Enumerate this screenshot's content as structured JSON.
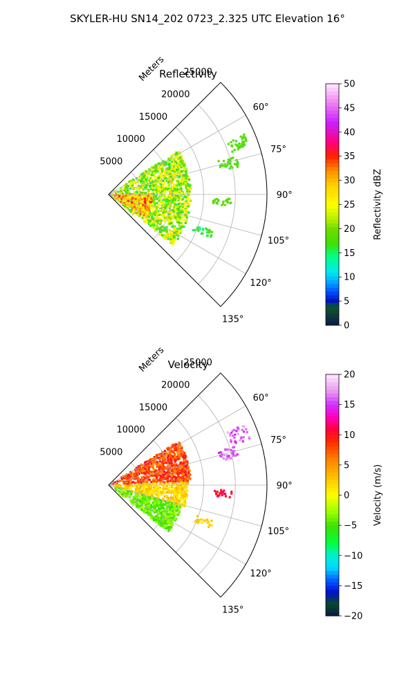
{
  "figure": {
    "title": "SKYLER-HU  SN14_202  0723_2.325 UTC Elevation 16°"
  },
  "chart_data": [
    {
      "type": "heatmap",
      "title": "Reflectivity",
      "projection": "polar-sector",
      "radial_label": "Meters",
      "radial_ticks": [
        5000,
        10000,
        15000,
        20000,
        25000
      ],
      "radial_tick_labels": [
        "5000",
        "10000",
        "15000",
        "20000",
        "25000"
      ],
      "rlim": [
        0,
        25000
      ],
      "azimuth_range_deg": [
        45,
        135
      ],
      "angular_ticks_deg": [
        60,
        75,
        90,
        105,
        120,
        135
      ],
      "angular_tick_labels": [
        "60°",
        "75°",
        "90°",
        "105°",
        "120°",
        "135°"
      ],
      "grid": true,
      "colorbar": {
        "label": "Reflectivity dBZ",
        "min": 0,
        "max": 50,
        "ticks": [
          0,
          5,
          10,
          15,
          20,
          25,
          30,
          35,
          40,
          45,
          50
        ],
        "tick_labels": [
          "0",
          "5",
          "10",
          "15",
          "20",
          "25",
          "30",
          "35",
          "40",
          "45",
          "50"
        ],
        "placement": "right"
      },
      "echo_regions": [
        {
          "az_deg": [
            58,
            128
          ],
          "range_m": [
            0,
            13000
          ],
          "value_range": [
            15,
            28
          ]
        },
        {
          "az_deg": [
            90,
            122
          ],
          "range_m": [
            0,
            7000
          ],
          "value_range": [
            22,
            36
          ]
        },
        {
          "az_deg": [
            66,
            72
          ],
          "range_m": [
            20500,
            23500
          ],
          "value_range": [
            16,
            20
          ]
        },
        {
          "az_deg": [
            73,
            78
          ],
          "range_m": [
            18000,
            21000
          ],
          "value_range": [
            16,
            20
          ]
        },
        {
          "az_deg": [
            92,
            96
          ],
          "range_m": [
            16500,
            19500
          ],
          "value_range": [
            16,
            20
          ]
        },
        {
          "az_deg": [
            109,
            113
          ],
          "range_m": [
            14500,
            17500
          ],
          "value_range": [
            14,
            18
          ]
        }
      ]
    },
    {
      "type": "heatmap",
      "title": "Velocity",
      "projection": "polar-sector",
      "radial_label": "Meters",
      "radial_ticks": [
        5000,
        10000,
        15000,
        20000,
        25000
      ],
      "radial_tick_labels": [
        "5000",
        "10000",
        "15000",
        "20000",
        "25000"
      ],
      "rlim": [
        0,
        25000
      ],
      "azimuth_range_deg": [
        45,
        135
      ],
      "angular_ticks_deg": [
        60,
        75,
        90,
        105,
        120,
        135
      ],
      "angular_tick_labels": [
        "60°",
        "75°",
        "90°",
        "105°",
        "120°",
        "135°"
      ],
      "grid": true,
      "colorbar": {
        "label": "Velocity (m/s)",
        "min": -20,
        "max": 20,
        "ticks": [
          -20,
          -15,
          -10,
          -5,
          0,
          5,
          10,
          15,
          20
        ],
        "tick_labels": [
          "−20",
          "−15",
          "−10",
          "−5",
          "0",
          "5",
          "10",
          "15",
          "20"
        ],
        "placement": "right"
      },
      "echo_regions": [
        {
          "az_deg": [
            58,
            88
          ],
          "range_m": [
            0,
            13000
          ],
          "value_range": [
            5,
            11
          ]
        },
        {
          "az_deg": [
            88,
            106
          ],
          "range_m": [
            0,
            12500
          ],
          "value_range": [
            0,
            4
          ]
        },
        {
          "az_deg": [
            106,
            128
          ],
          "range_m": [
            0,
            12000
          ],
          "value_range": [
            -6,
            -2
          ]
        },
        {
          "az_deg": [
            66,
            72
          ],
          "range_m": [
            20500,
            23500
          ],
          "value_range": [
            14,
            18
          ]
        },
        {
          "az_deg": [
            73,
            78
          ],
          "range_m": [
            18000,
            21000
          ],
          "value_range": [
            14,
            17
          ]
        },
        {
          "az_deg": [
            92,
            96
          ],
          "range_m": [
            16500,
            19500
          ],
          "value_range": [
            9,
            12
          ]
        },
        {
          "az_deg": [
            109,
            113
          ],
          "range_m": [
            14500,
            17500
          ],
          "value_range": [
            1,
            3
          ]
        }
      ]
    }
  ]
}
